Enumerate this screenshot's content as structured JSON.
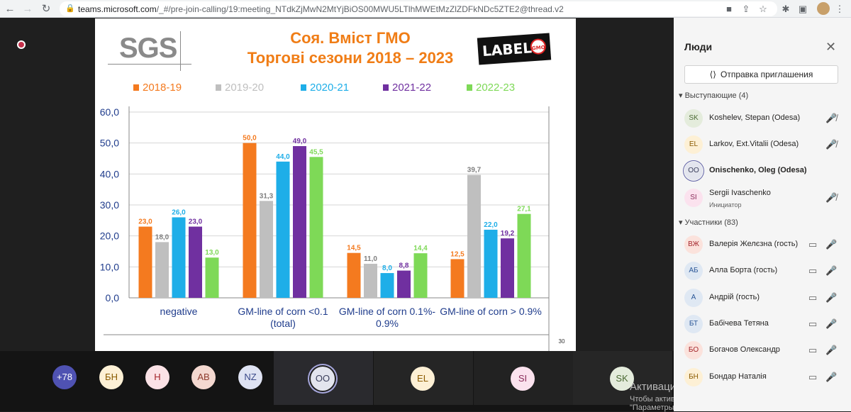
{
  "browser": {
    "url_host": "teams.microsoft.com",
    "url_path": "/_#/pre-join-calling/19:meeting_NTdkZjMwN2MtYjBiOS00MWU5LTlhMWEtMzZlZDFkNDc5ZTE2@thread.v2"
  },
  "slide": {
    "logo_text": "SGS",
    "title_line1": "Соя. Вміст ГМО",
    "title_line2": "Торгові сезони 2018 – 2023",
    "badge_text": "LABEL IT!",
    "badge_gmo": "GMO",
    "page_number": "30"
  },
  "chart_data": {
    "type": "bar",
    "categories": [
      "negative",
      "GM-line of corn <0.1 (total)",
      "GM-line of corn 0.1%-0.9%",
      "GM-line of corn > 0.9%"
    ],
    "category_lines": [
      [
        "negative"
      ],
      [
        "GM-line of corn <0.1",
        "(total)"
      ],
      [
        "GM-line of corn 0.1%-",
        "0.9%"
      ],
      [
        "GM-line of corn > 0.9%"
      ]
    ],
    "series": [
      {
        "name": "2018-19",
        "color": "#f47a1f",
        "values": [
          23.0,
          50.0,
          14.5,
          12.5
        ],
        "labels": [
          "23,0",
          "50,0",
          "14,5",
          "12,5"
        ]
      },
      {
        "name": "2019-20",
        "color": "#bfbfbf",
        "values": [
          18.0,
          31.3,
          11.0,
          39.7
        ],
        "labels": [
          "18,0",
          "31,3",
          "11,0",
          "39,7"
        ]
      },
      {
        "name": "2020-21",
        "color": "#1eaee8",
        "values": [
          26.0,
          44.0,
          8.0,
          22.0
        ],
        "labels": [
          "26,0",
          "44,0",
          "8,0",
          "22,0"
        ]
      },
      {
        "name": "2021-22",
        "color": "#7030a0",
        "values": [
          23.0,
          49.0,
          8.8,
          19.2
        ],
        "labels": [
          "23,0",
          "49,0",
          "8,8",
          "19,2"
        ]
      },
      {
        "name": "2022-23",
        "color": "#7ed957",
        "values": [
          13.0,
          45.5,
          14.4,
          27.1
        ],
        "labels": [
          "13,0",
          "45,5",
          "14,4",
          "27,1"
        ]
      }
    ],
    "y_ticks": [
      "0,0",
      "10,0",
      "20,0",
      "30,0",
      "40,0",
      "50,0",
      "60,0"
    ],
    "ylim": [
      0,
      60
    ],
    "grid": true,
    "legend": "top"
  },
  "stage": {
    "overflow_count": "+78",
    "avatars": [
      {
        "initials": "БН",
        "bg": "#fdf0d5",
        "fg": "#8a5a00"
      },
      {
        "initials": "Н",
        "bg": "#fbe2e6",
        "fg": "#a4262c"
      },
      {
        "initials": "AB",
        "bg": "#f4d8d0",
        "fg": "#8e3b2d"
      },
      {
        "initials": "NZ",
        "bg": "#dfe3f3",
        "fg": "#3b4a8a"
      }
    ],
    "tiles": [
      {
        "initials": "OO",
        "bg": "#e3e5ee",
        "fg": "#3b3f5c",
        "tile_bg": "#2a2a2e",
        "active": true
      },
      {
        "initials": "EL",
        "bg": "#fdf0d5",
        "fg": "#8a5a00",
        "tile_bg": "#252525",
        "active": false
      },
      {
        "initials": "SI",
        "bg": "#fbe2ee",
        "fg": "#8a2c5a",
        "tile_bg": "#222222",
        "active": false
      },
      {
        "initials": "SK",
        "bg": "#e4ecdc",
        "fg": "#4b6a33",
        "tile_bg": "#262626",
        "active": false
      }
    ]
  },
  "windows_watermark": {
    "title": "Активация Windows",
    "subtitle": "Чтобы активировать Windows, перейдите в раздел \"Параметры\"."
  },
  "people": {
    "title": "Люди",
    "invite_label": "Отправка приглашения",
    "presenters_header": "Выступающие",
    "presenters_count": "(4)",
    "presenters": [
      {
        "initials": "SK",
        "name": "Koshelev, Stepan (Odesa)",
        "role": "",
        "bg": "#e4ecdc",
        "fg": "#4b6a33",
        "bold": false,
        "muted": true
      },
      {
        "initials": "EL",
        "name": "Larkov, Ext.Vitalii (Odesa)",
        "role": "",
        "bg": "#fdf0d5",
        "fg": "#8a5a00",
        "bold": false,
        "muted": true
      },
      {
        "initials": "OO",
        "name": "Onischenko, Oleg (Odesa)",
        "role": "",
        "bg": "#e3e5ee",
        "fg": "#3b3f5c",
        "bold": true,
        "muted": false
      },
      {
        "initials": "SI",
        "name": "Sergii Ivaschenko",
        "role": "Инициатор",
        "bg": "#fbe2ee",
        "fg": "#8a2c5a",
        "bold": false,
        "muted": true
      }
    ],
    "attendees_header": "Участники",
    "attendees_count": "(83)",
    "attendees": [
      {
        "initials": "ВЖ",
        "name": "Валерія Желєзна (гость)",
        "bg": "#fbe2dc",
        "fg": "#a4262c"
      },
      {
        "initials": "АБ",
        "name": "Алла Борта (гость)",
        "bg": "#dfe8f3",
        "fg": "#2b5797"
      },
      {
        "initials": "А",
        "name": "Андрій (гость)",
        "bg": "#dfe8f3",
        "fg": "#2b5797"
      },
      {
        "initials": "БТ",
        "name": "Бабічева Тетяна",
        "bg": "#dfe8f3",
        "fg": "#2b5797"
      },
      {
        "initials": "БО",
        "name": "Богачов Олександр",
        "bg": "#fbe2dc",
        "fg": "#a4262c"
      },
      {
        "initials": "БН",
        "name": "Бондар Наталія",
        "bg": "#fdf0d5",
        "fg": "#8a5a00"
      }
    ]
  }
}
